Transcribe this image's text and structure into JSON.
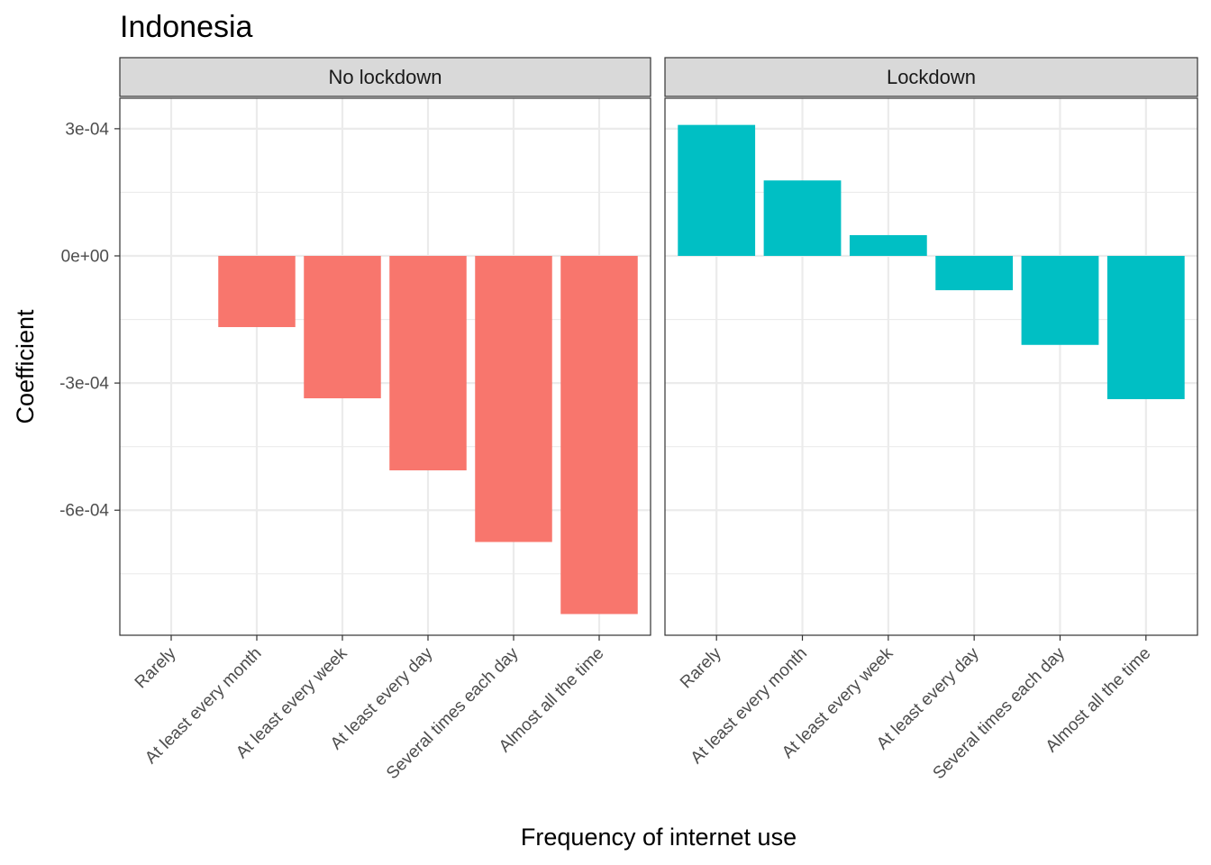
{
  "chart_data": {
    "type": "bar",
    "title": "Indonesia",
    "xlabel": "Frequency of internet use",
    "ylabel": "Coefficient",
    "ylim": [
      -0.000895,
      0.000372
    ],
    "y_ticks": [
      {
        "value": 0.0003,
        "label": "3e-04"
      },
      {
        "value": 0,
        "label": "0e+00"
      },
      {
        "value": -0.0003,
        "label": "-3e-04"
      },
      {
        "value": -0.0006,
        "label": "-6e-04"
      }
    ],
    "grid": true,
    "legend": "none",
    "categories": [
      "Rarely",
      "At least every month",
      "At least every week",
      "At least every day",
      "Several times each day",
      "Almost all the time"
    ],
    "panels": [
      {
        "name": "No lockdown",
        "color": "#F8766D",
        "values": [
          null,
          -0.000168,
          -0.000336,
          -0.000506,
          -0.000675,
          -0.000845
        ]
      },
      {
        "name": "Lockdown",
        "color": "#00BFC4",
        "values": [
          0.000309,
          0.000178,
          4.9e-05,
          -8.1e-05,
          -0.00021,
          -0.000338
        ]
      }
    ]
  }
}
